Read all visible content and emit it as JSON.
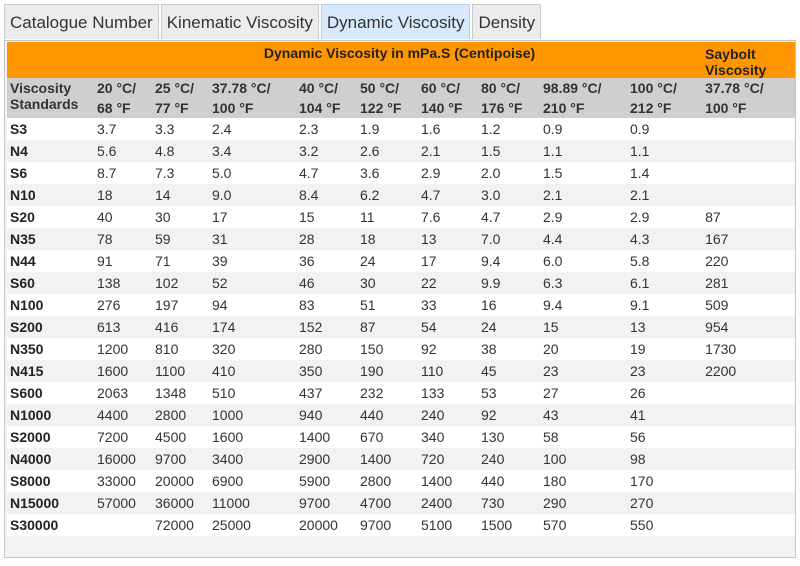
{
  "tabs": [
    {
      "label": "Catalogue Number",
      "active": false
    },
    {
      "label": "Kinematic Viscosity",
      "active": false
    },
    {
      "label": "Dynamic Viscosity",
      "active": true
    },
    {
      "label": "Density",
      "active": false
    }
  ],
  "table": {
    "group_title": "Dynamic Viscosity in mPa.S (Centipoise)",
    "saybolt_title": "Saybolt Viscosity",
    "standards_label": "Viscosity Standards",
    "columns": [
      {
        "c": "20 °C/",
        "f": "68 °F"
      },
      {
        "c": "25 °C/",
        "f": "77 °F"
      },
      {
        "c": "37.78 °C/",
        "f": "100 °F"
      },
      {
        "c": "40 °C/",
        "f": "104 °F"
      },
      {
        "c": "50 °C/",
        "f": "122 °F"
      },
      {
        "c": "60 °C/",
        "f": "140 °F"
      },
      {
        "c": "80 °C/",
        "f": "176 °F"
      },
      {
        "c": "98.89 °C/",
        "f": "210 °F"
      },
      {
        "c": "100 °C/",
        "f": "212 °F"
      },
      {
        "c": "37.78 °C/",
        "f": "100 °F"
      }
    ],
    "rows": [
      {
        "std": "S3",
        "values": [
          "3.7",
          "3.3",
          "2.4",
          "2.3",
          "1.9",
          "1.6",
          "1.2",
          "0.9",
          "0.9",
          ""
        ]
      },
      {
        "std": "N4",
        "values": [
          "5.6",
          "4.8",
          "3.4",
          "3.2",
          "2.6",
          "2.1",
          "1.5",
          "1.1",
          "1.1",
          ""
        ]
      },
      {
        "std": "S6",
        "values": [
          "8.7",
          "7.3",
          "5.0",
          "4.7",
          "3.6",
          "2.9",
          "2.0",
          "1.5",
          "1.4",
          ""
        ]
      },
      {
        "std": "N10",
        "values": [
          "18",
          "14",
          "9.0",
          "8.4",
          "6.2",
          "4.7",
          "3.0",
          "2.1",
          "2.1",
          ""
        ]
      },
      {
        "std": "S20",
        "values": [
          "40",
          "30",
          "17",
          "15",
          "11",
          "7.6",
          "4.7",
          "2.9",
          "2.9",
          "87"
        ]
      },
      {
        "std": "N35",
        "values": [
          "78",
          "59",
          "31",
          "28",
          "18",
          "13",
          "7.0",
          "4.4",
          "4.3",
          "167"
        ]
      },
      {
        "std": "N44",
        "values": [
          "91",
          "71",
          "39",
          "36",
          "24",
          "17",
          "9.4",
          "6.0",
          "5.8",
          "220"
        ]
      },
      {
        "std": "S60",
        "values": [
          "138",
          "102",
          "52",
          "46",
          "30",
          "22",
          "9.9",
          "6.3",
          "6.1",
          "281"
        ]
      },
      {
        "std": "N100",
        "values": [
          "276",
          "197",
          "94",
          "83",
          "51",
          "33",
          "16",
          "9.4",
          "9.1",
          "509"
        ]
      },
      {
        "std": "S200",
        "values": [
          "613",
          "416",
          "174",
          "152",
          "87",
          "54",
          "24",
          "15",
          "13",
          "954"
        ]
      },
      {
        "std": "N350",
        "values": [
          "1200",
          "810",
          "320",
          "280",
          "150",
          "92",
          "38",
          "20",
          "19",
          "1730"
        ]
      },
      {
        "std": "N415",
        "values": [
          "1600",
          "1100",
          "410",
          "350",
          "190",
          "110",
          "45",
          "23",
          "23",
          "2200"
        ]
      },
      {
        "std": "S600",
        "values": [
          "2063",
          "1348",
          "510",
          "437",
          "232",
          "133",
          "53",
          "27",
          "26",
          ""
        ]
      },
      {
        "std": "N1000",
        "values": [
          "4400",
          "2800",
          "1000",
          "940",
          "440",
          "240",
          "92",
          "43",
          "41",
          ""
        ]
      },
      {
        "std": "S2000",
        "values": [
          "7200",
          "4500",
          "1600",
          "1400",
          "670",
          "340",
          "130",
          "58",
          "56",
          ""
        ]
      },
      {
        "std": "N4000",
        "values": [
          "16000",
          "9700",
          "3400",
          "2900",
          "1400",
          "720",
          "240",
          "100",
          "98",
          ""
        ]
      },
      {
        "std": "S8000",
        "values": [
          "33000",
          "20000",
          "6900",
          "5900",
          "2800",
          "1400",
          "440",
          "180",
          "170",
          ""
        ]
      },
      {
        "std": "N15000",
        "values": [
          "57000",
          "36000",
          "11000",
          "9700",
          "4700",
          "2400",
          "730",
          "290",
          "270",
          ""
        ]
      },
      {
        "std": "S30000",
        "values": [
          "",
          "72000",
          "25000",
          "20000",
          "9700",
          "5100",
          "1500",
          "570",
          "550",
          ""
        ]
      }
    ]
  }
}
